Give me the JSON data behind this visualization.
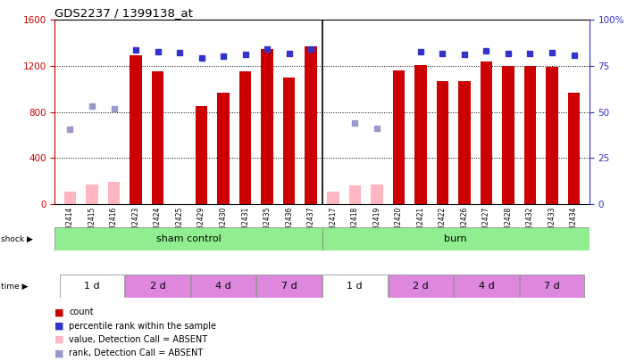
{
  "title": "GDS2237 / 1399138_at",
  "samples": [
    "GSM32414",
    "GSM32415",
    "GSM32416",
    "GSM32423",
    "GSM32424",
    "GSM32425",
    "GSM32429",
    "GSM32430",
    "GSM32431",
    "GSM32435",
    "GSM32436",
    "GSM32437",
    "GSM32417",
    "GSM32418",
    "GSM32419",
    "GSM32420",
    "GSM32421",
    "GSM32422",
    "GSM32426",
    "GSM32427",
    "GSM32428",
    "GSM32432",
    "GSM32433",
    "GSM32434"
  ],
  "count_values": [
    null,
    null,
    null,
    1290,
    1150,
    null,
    850,
    970,
    1150,
    1350,
    1100,
    1370,
    null,
    null,
    null,
    1160,
    1210,
    1070,
    1070,
    1240,
    1200,
    1200,
    1190,
    970
  ],
  "absent_values": [
    110,
    170,
    195,
    null,
    null,
    null,
    null,
    null,
    null,
    null,
    null,
    null,
    110,
    165,
    170,
    null,
    null,
    null,
    null,
    null,
    null,
    null,
    null,
    null
  ],
  "rank_values": [
    null,
    null,
    null,
    1340,
    1320,
    1315,
    1270,
    1285,
    1300,
    1350,
    1310,
    1350,
    null,
    null,
    null,
    null,
    1320,
    1305,
    1300,
    1330,
    1310,
    1310,
    1315,
    1290
  ],
  "absent_rank_values": [
    650,
    850,
    830,
    null,
    null,
    null,
    null,
    null,
    null,
    null,
    null,
    null,
    null,
    700,
    660,
    null,
    null,
    null,
    null,
    null,
    null,
    null,
    null,
    null
  ],
  "ylim_left": [
    0,
    1600
  ],
  "ylim_right": [
    0,
    100
  ],
  "yticks_left": [
    0,
    400,
    800,
    1200,
    1600
  ],
  "yticks_right": [
    0,
    25,
    50,
    75,
    100
  ],
  "bar_color": "#CC0000",
  "absent_bar_color": "#FFB6C1",
  "rank_color": "#3333CC",
  "absent_rank_color": "#9999CC",
  "grid_color": "#000000",
  "background_color": "#ffffff",
  "left_label_color": "#CC0000",
  "right_label_color": "#3333CC",
  "shock_green": "#90EE90",
  "time_purple": "#DD88DD",
  "time_white": "#ffffff"
}
